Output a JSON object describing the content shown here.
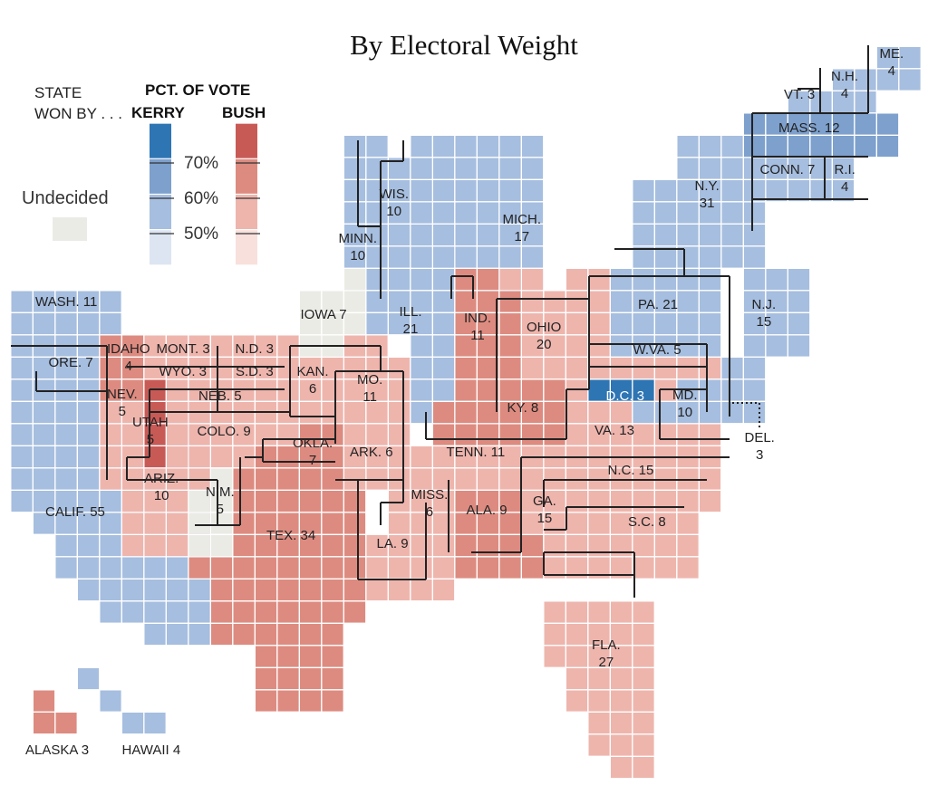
{
  "title": "By Electoral Weight",
  "legend": {
    "state_label": "STATE",
    "won_by_label": "WON BY . . .",
    "pct_label": "PCT. OF VOTE",
    "kerry_label": "KERRY",
    "bush_label": "BUSH",
    "thresholds": [
      "70%",
      "60%",
      "50%"
    ],
    "undecided_label": "Undecided"
  },
  "colors": {
    "kerry": [
      "#dde5f2",
      "#a6bedf",
      "#7da0cd",
      "#2e75b4"
    ],
    "bush": [
      "#f8e0dc",
      "#eeb5ad",
      "#dd8b80",
      "#c85a56"
    ],
    "undecided": "#ebebe6"
  },
  "states": [
    {
      "abbr": "WASH.",
      "electoral_votes": 11,
      "winner": "Kerry"
    },
    {
      "abbr": "ORE.",
      "electoral_votes": 7,
      "winner": "Kerry"
    },
    {
      "abbr": "CALIF.",
      "electoral_votes": 55,
      "winner": "Kerry"
    },
    {
      "abbr": "NEV.",
      "electoral_votes": 5,
      "winner": "Bush"
    },
    {
      "abbr": "IDAHO",
      "electoral_votes": 4,
      "winner": "Bush"
    },
    {
      "abbr": "MONT.",
      "electoral_votes": 3,
      "winner": "Bush"
    },
    {
      "abbr": "WYO.",
      "electoral_votes": 3,
      "winner": "Bush"
    },
    {
      "abbr": "UTAH",
      "electoral_votes": 5,
      "winner": "Bush"
    },
    {
      "abbr": "ARIZ.",
      "electoral_votes": 10,
      "winner": "Bush"
    },
    {
      "abbr": "COLO.",
      "electoral_votes": 9,
      "winner": "Bush"
    },
    {
      "abbr": "N.M.",
      "electoral_votes": 5,
      "winner": "Undecided"
    },
    {
      "abbr": "N.D.",
      "electoral_votes": 3,
      "winner": "Bush"
    },
    {
      "abbr": "S.D.",
      "electoral_votes": 3,
      "winner": "Bush"
    },
    {
      "abbr": "NEB.",
      "electoral_votes": 5,
      "winner": "Bush"
    },
    {
      "abbr": "KAN.",
      "electoral_votes": 6,
      "winner": "Bush"
    },
    {
      "abbr": "OKLA.",
      "electoral_votes": 7,
      "winner": "Bush"
    },
    {
      "abbr": "TEX.",
      "electoral_votes": 34,
      "winner": "Bush"
    },
    {
      "abbr": "MINN.",
      "electoral_votes": 10,
      "winner": "Kerry"
    },
    {
      "abbr": "IOWA",
      "electoral_votes": 7,
      "winner": "Undecided"
    },
    {
      "abbr": "MO.",
      "electoral_votes": 11,
      "winner": "Bush"
    },
    {
      "abbr": "ARK.",
      "electoral_votes": 6,
      "winner": "Bush"
    },
    {
      "abbr": "LA.",
      "electoral_votes": 9,
      "winner": "Bush"
    },
    {
      "abbr": "WIS.",
      "electoral_votes": 10,
      "winner": "Kerry"
    },
    {
      "abbr": "ILL.",
      "electoral_votes": 21,
      "winner": "Kerry"
    },
    {
      "abbr": "MICH.",
      "electoral_votes": 17,
      "winner": "Kerry"
    },
    {
      "abbr": "IND.",
      "electoral_votes": 11,
      "winner": "Bush"
    },
    {
      "abbr": "OHIO",
      "electoral_votes": 20,
      "winner": "Bush"
    },
    {
      "abbr": "KY.",
      "electoral_votes": 8,
      "winner": "Bush"
    },
    {
      "abbr": "TENN.",
      "electoral_votes": 11,
      "winner": "Bush"
    },
    {
      "abbr": "MISS.",
      "electoral_votes": 6,
      "winner": "Bush"
    },
    {
      "abbr": "ALA.",
      "electoral_votes": 9,
      "winner": "Bush"
    },
    {
      "abbr": "GA.",
      "electoral_votes": 15,
      "winner": "Bush"
    },
    {
      "abbr": "FLA.",
      "electoral_votes": 27,
      "winner": "Bush"
    },
    {
      "abbr": "S.C.",
      "electoral_votes": 8,
      "winner": "Bush"
    },
    {
      "abbr": "N.C.",
      "electoral_votes": 15,
      "winner": "Bush"
    },
    {
      "abbr": "VA.",
      "electoral_votes": 13,
      "winner": "Bush"
    },
    {
      "abbr": "W.VA.",
      "electoral_votes": 5,
      "winner": "Bush"
    },
    {
      "abbr": "PA.",
      "electoral_votes": 21,
      "winner": "Kerry"
    },
    {
      "abbr": "N.Y.",
      "electoral_votes": 31,
      "winner": "Kerry"
    },
    {
      "abbr": "N.J.",
      "electoral_votes": 15,
      "winner": "Kerry"
    },
    {
      "abbr": "MD.",
      "electoral_votes": 10,
      "winner": "Kerry"
    },
    {
      "abbr": "D.C.",
      "electoral_votes": 3,
      "winner": "Kerry"
    },
    {
      "abbr": "DEL.",
      "electoral_votes": 3,
      "winner": "Kerry"
    },
    {
      "abbr": "CONN.",
      "electoral_votes": 7,
      "winner": "Kerry"
    },
    {
      "abbr": "R.I.",
      "electoral_votes": 4,
      "winner": "Kerry"
    },
    {
      "abbr": "MASS.",
      "electoral_votes": 12,
      "winner": "Kerry"
    },
    {
      "abbr": "VT.",
      "electoral_votes": 3,
      "winner": "Kerry"
    },
    {
      "abbr": "N.H.",
      "electoral_votes": 4,
      "winner": "Kerry"
    },
    {
      "abbr": "ME.",
      "electoral_votes": 4,
      "winner": "Kerry"
    },
    {
      "abbr": "ALASKA",
      "electoral_votes": 3,
      "winner": "Bush"
    },
    {
      "abbr": "HAWAII",
      "electoral_votes": 4,
      "winner": "Kerry"
    }
  ]
}
